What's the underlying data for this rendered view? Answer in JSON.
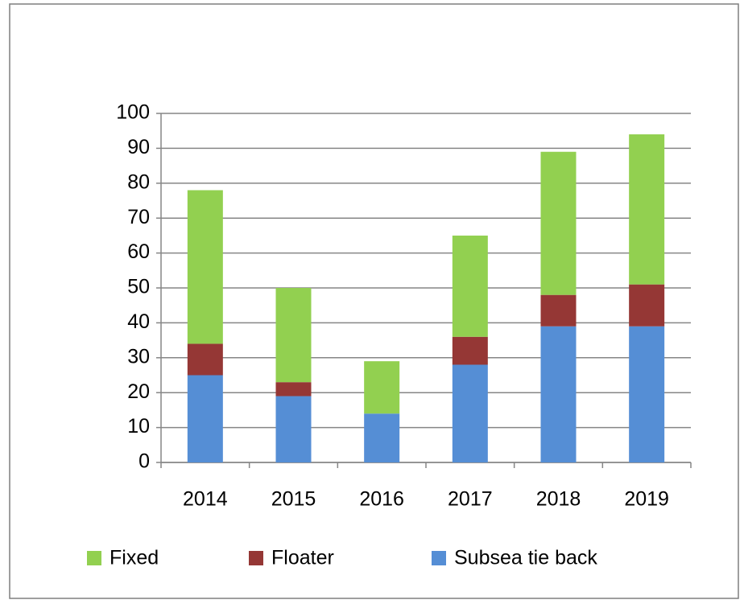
{
  "chart_data": {
    "type": "stacked_bar",
    "categories": [
      "2014",
      "2015",
      "2016",
      "2017",
      "2018",
      "2019"
    ],
    "series": [
      {
        "name": "Fixed",
        "color": "#92d050",
        "values": [
          44,
          27,
          15,
          29,
          41,
          43
        ]
      },
      {
        "name": "Floater",
        "color": "#953735",
        "values": [
          9,
          4,
          0,
          8,
          9,
          12
        ]
      },
      {
        "name": "Subsea tie back",
        "color": "#558ed5",
        "values": [
          25,
          19,
          14,
          28,
          39,
          39
        ]
      }
    ],
    "ylim": [
      0,
      100
    ],
    "yticks": [
      0,
      10,
      20,
      30,
      40,
      50,
      60,
      70,
      80,
      90,
      100
    ],
    "grid": true,
    "legend": "bottom"
  }
}
